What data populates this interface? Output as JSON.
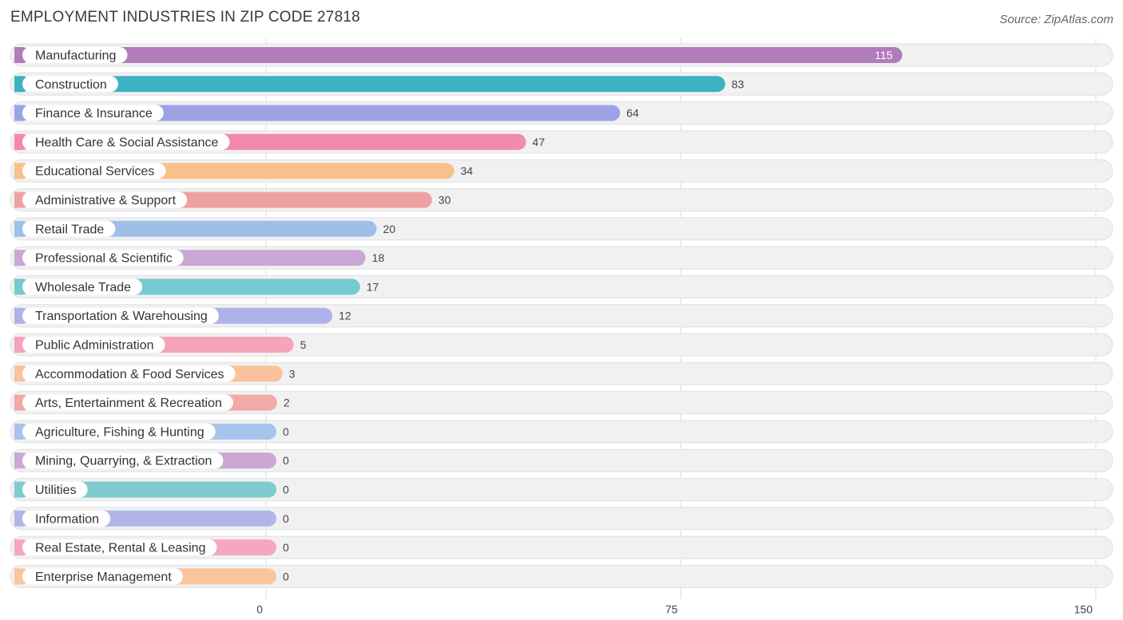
{
  "header": {
    "title": "EMPLOYMENT INDUSTRIES IN ZIP CODE 27818",
    "source": "Source: ZipAtlas.com"
  },
  "chart_data": {
    "type": "bar",
    "orientation": "horizontal",
    "title": "EMPLOYMENT INDUSTRIES IN ZIP CODE 27818",
    "xlabel": "",
    "ylabel": "",
    "xlim": [
      0,
      150
    ],
    "ticks": [
      0,
      75,
      150
    ],
    "grid": true,
    "categories": [
      "Manufacturing",
      "Construction",
      "Finance & Insurance",
      "Health Care & Social Assistance",
      "Educational Services",
      "Administrative & Support",
      "Retail Trade",
      "Professional & Scientific",
      "Wholesale Trade",
      "Transportation & Warehousing",
      "Public Administration",
      "Accommodation & Food Services",
      "Arts, Entertainment & Recreation",
      "Agriculture, Fishing & Hunting",
      "Mining, Quarrying, & Extraction",
      "Utilities",
      "Information",
      "Real Estate, Rental & Leasing",
      "Enterprise Management"
    ],
    "values": [
      115,
      83,
      64,
      47,
      34,
      30,
      20,
      18,
      17,
      12,
      5,
      3,
      2,
      0,
      0,
      0,
      0,
      0,
      0
    ],
    "colors": [
      "#b07cba",
      "#3fb1c2",
      "#9ca3e4",
      "#f28aa9",
      "#f9c08a",
      "#eea1a1",
      "#9dbfe8",
      "#c9a6d3",
      "#76c9cf",
      "#adb3ea",
      "#f6a3bc",
      "#f9c29a",
      "#f0aaa8",
      "#a7c4ec",
      "#c9a9d3",
      "#7ecbd0",
      "#b0b6ea",
      "#f6a6bf",
      "#f9c49e"
    ]
  }
}
